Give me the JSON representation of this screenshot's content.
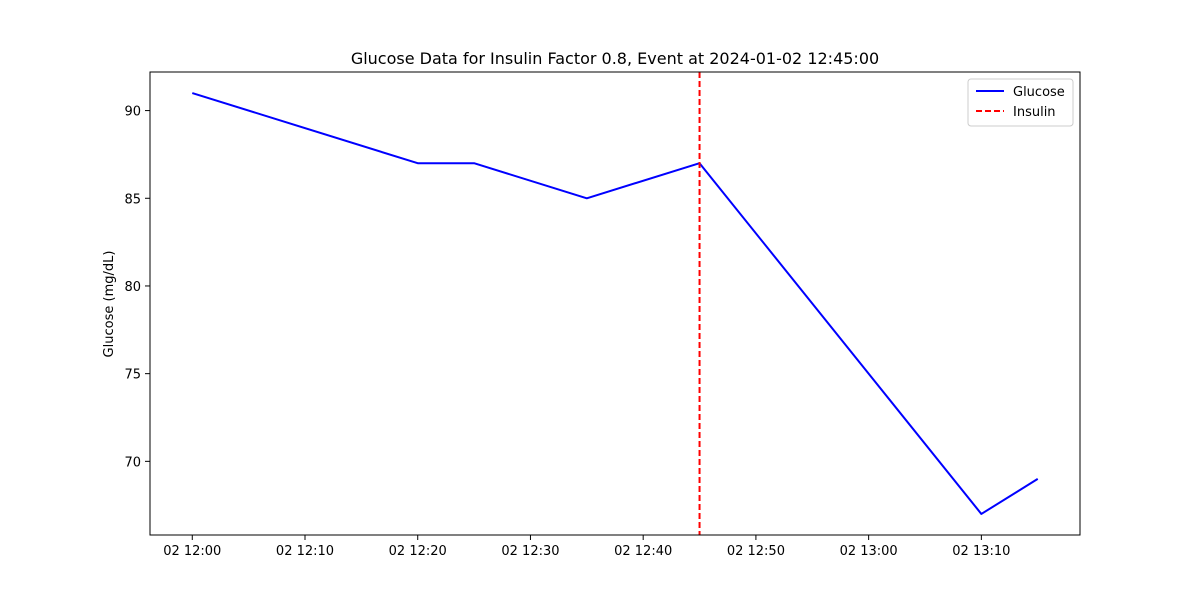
{
  "chart_data": {
    "type": "line",
    "title": "Glucose Data for Insulin Factor 0.8, Event at 2024-01-02 12:45:00",
    "xlabel": "",
    "ylabel": "Glucose (mg/dL)",
    "x_range": [
      "2024-01-02 11:56:15",
      "2024-01-02 13:18:45"
    ],
    "ylim": [
      65.8,
      92.2
    ],
    "x_ticks": [
      {
        "time": "2024-01-02 12:00",
        "label": "02 12:00"
      },
      {
        "time": "2024-01-02 12:10",
        "label": "02 12:10"
      },
      {
        "time": "2024-01-02 12:20",
        "label": "02 12:20"
      },
      {
        "time": "2024-01-02 12:30",
        "label": "02 12:30"
      },
      {
        "time": "2024-01-02 12:40",
        "label": "02 12:40"
      },
      {
        "time": "2024-01-02 12:50",
        "label": "02 12:50"
      },
      {
        "time": "2024-01-02 13:00",
        "label": "02 13:00"
      },
      {
        "time": "2024-01-02 13:10",
        "label": "02 13:10"
      }
    ],
    "y_ticks": [
      70,
      75,
      80,
      85,
      90
    ],
    "grid": false,
    "legend_position": "top-right",
    "series": [
      {
        "name": "Glucose",
        "color": "#0000ff",
        "style": "solid",
        "x": [
          "2024-01-02 12:00",
          "2024-01-02 12:20",
          "2024-01-02 12:25",
          "2024-01-02 12:35",
          "2024-01-02 12:45",
          "2024-01-02 13:10",
          "2024-01-02 13:15"
        ],
        "y": [
          91,
          87,
          87,
          85,
          87,
          67,
          69
        ]
      }
    ],
    "events": [
      {
        "name": "Insulin",
        "time": "2024-01-02 12:45",
        "color": "#ff0000",
        "style": "dashed"
      }
    ]
  }
}
